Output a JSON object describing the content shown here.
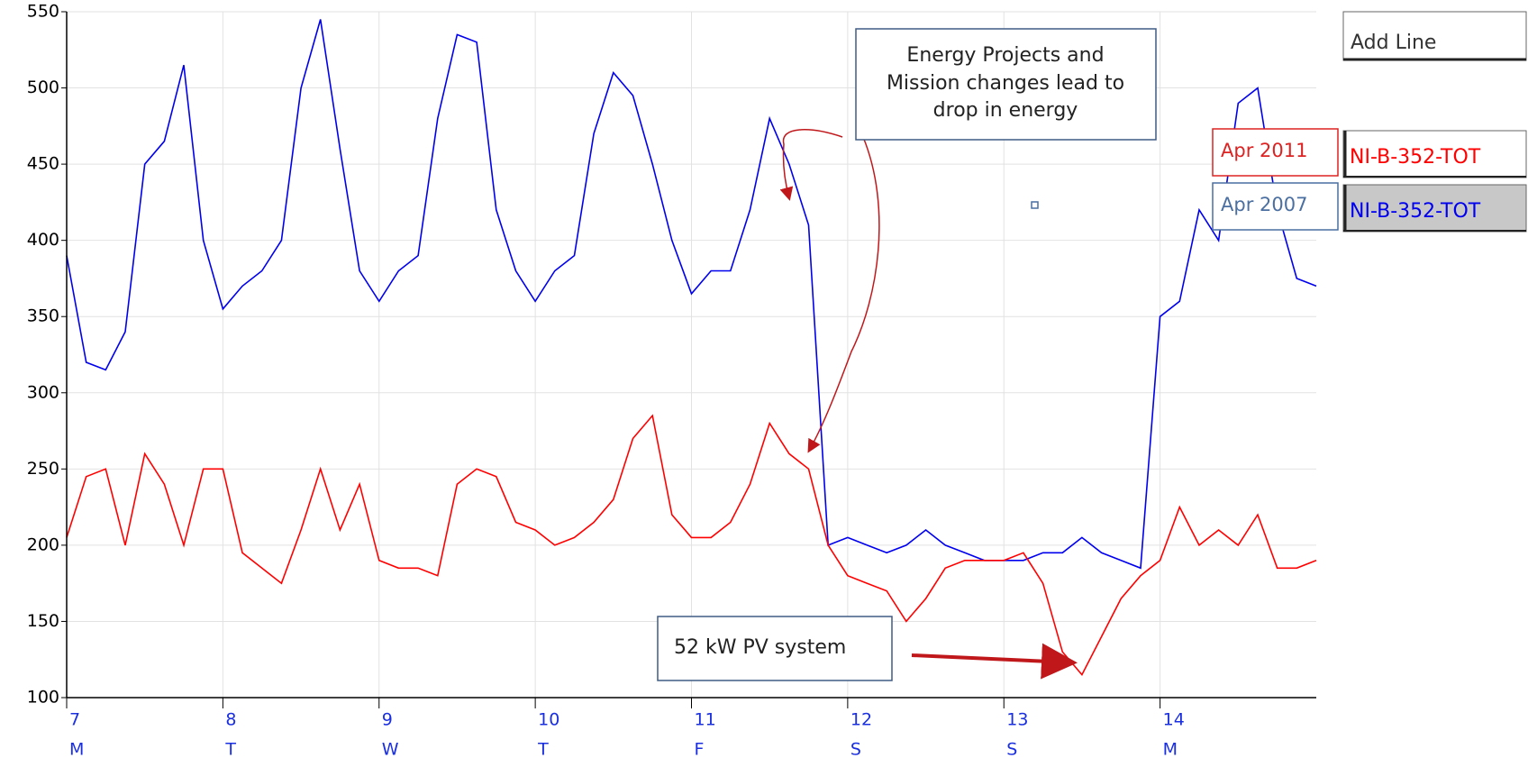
{
  "chart_data": {
    "type": "line",
    "x": [
      7,
      7.125,
      7.25,
      7.375,
      7.5,
      7.625,
      7.75,
      7.875,
      8,
      8.125,
      8.25,
      8.375,
      8.5,
      8.625,
      8.75,
      8.875,
      9,
      9.125,
      9.25,
      9.375,
      9.5,
      9.625,
      9.75,
      9.875,
      10,
      10.125,
      10.25,
      10.375,
      10.5,
      10.625,
      10.75,
      10.875,
      11,
      11.125,
      11.25,
      11.375,
      11.5,
      11.625,
      11.75,
      11.875,
      12,
      12.125,
      12.25,
      12.375,
      12.5,
      12.625,
      12.75,
      12.875,
      13,
      13.125,
      13.25,
      13.375,
      13.5,
      13.625,
      13.75,
      13.875,
      14,
      14.125,
      14.25,
      14.375,
      14.5,
      14.625,
      14.75,
      14.875,
      15
    ],
    "series": [
      {
        "name": "NI-B-352-TOT",
        "period": "Apr 2007",
        "color": "#0000ee",
        "values": [
          390,
          320,
          315,
          340,
          450,
          465,
          515,
          400,
          355,
          370,
          380,
          400,
          500,
          545,
          460,
          380,
          360,
          380,
          390,
          480,
          535,
          530,
          420,
          380,
          360,
          380,
          390,
          470,
          510,
          495,
          450,
          400,
          365,
          380,
          380,
          420,
          480,
          450,
          410,
          200,
          205,
          200,
          195,
          200,
          210,
          200,
          195,
          190,
          190,
          190,
          195,
          195,
          205,
          195,
          190,
          185,
          350,
          360,
          420,
          400,
          490,
          500,
          420,
          375,
          370
        ]
      },
      {
        "name": "NI-B-352-TOT",
        "period": "Apr 2011",
        "color": "#ff0000",
        "values": [
          205,
          245,
          250,
          200,
          260,
          240,
          200,
          250,
          250,
          195,
          185,
          175,
          210,
          250,
          210,
          240,
          190,
          185,
          185,
          180,
          240,
          250,
          245,
          215,
          210,
          200,
          205,
          215,
          230,
          270,
          285,
          220,
          205,
          205,
          215,
          240,
          280,
          260,
          250,
          200,
          180,
          175,
          170,
          150,
          165,
          185,
          190,
          190,
          190,
          195,
          175,
          130,
          115,
          140,
          165,
          180,
          190,
          225,
          200,
          210,
          200,
          220,
          185,
          185,
          190
        ]
      }
    ],
    "xlim": [
      7,
      15
    ],
    "xticks": [
      7,
      8,
      9,
      10,
      11,
      12,
      13,
      14
    ],
    "day_labels": [
      "M",
      "T",
      "W",
      "T",
      "F",
      "S",
      "S",
      "M"
    ],
    "ylim": [
      100,
      550
    ],
    "yticks": [
      100,
      150,
      200,
      250,
      300,
      350,
      400,
      450,
      500,
      550
    ],
    "grid": true,
    "annotations": [
      {
        "lines": [
          "Energy Projects and",
          "Mission changes lead to",
          "drop in energy"
        ]
      },
      {
        "lines": [
          "52 kW PV system"
        ]
      }
    ],
    "legend_button": "Add Line"
  }
}
